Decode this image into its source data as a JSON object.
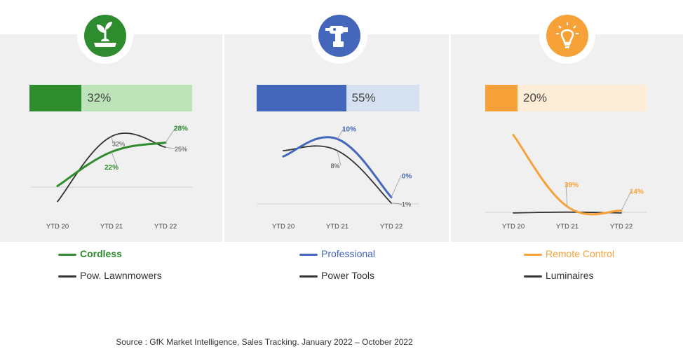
{
  "source_text": "Source : GfK Market Intelligence, Sales Tracking. January 2022 – October 2022",
  "chart_data": [
    {
      "type": "line",
      "icon": "sprouting-plant-icon",
      "icon_color": "#2e8b2e",
      "share_value": 32,
      "share_label": "32%",
      "categories": [
        "YTD 20",
        "YTD 21",
        "YTD 22"
      ],
      "ylim": [
        -12,
        35
      ],
      "series": [
        {
          "name": "Cordless",
          "color": "#2e8b2e",
          "values": [
            0,
            22,
            28
          ],
          "labels": [
            "",
            "22%",
            "28%"
          ]
        },
        {
          "name": "Pow. Lawnmowers",
          "color": "#333333",
          "values": [
            -10,
            32,
            25
          ],
          "labels": [
            "",
            "32%",
            "25%"
          ]
        }
      ]
    },
    {
      "type": "line",
      "icon": "power-drill-icon",
      "icon_color": "#4466bb",
      "share_value": 55,
      "share_label": "55%",
      "categories": [
        "YTD 20",
        "YTD 21",
        "YTD 22"
      ],
      "ylim": [
        -2,
        11
      ],
      "series": [
        {
          "name": "Professional",
          "color": "#4466bb",
          "values": [
            7,
            10,
            0
          ],
          "labels": [
            "",
            "10%",
            "0%"
          ]
        },
        {
          "name": "Power Tools",
          "color": "#333333",
          "values": [
            8,
            8,
            -1
          ],
          "labels": [
            "",
            "8%",
            "-1%"
          ]
        }
      ]
    },
    {
      "type": "line",
      "icon": "led-bulb-icon",
      "icon_color": "#f7a239",
      "share_value": 20,
      "share_label": "20%",
      "categories": [
        "YTD 20",
        "YTD 21",
        "YTD 22"
      ],
      "ylim": [
        -5,
        500
      ],
      "series": [
        {
          "name": "Remote Control",
          "color": "#f7a239",
          "values": [
            480,
            39,
            14
          ],
          "labels": [
            "",
            "39%",
            "14%"
          ]
        },
        {
          "name": "Luminaires",
          "color": "#333333",
          "values": [
            0,
            5,
            0
          ],
          "labels": [
            "",
            "",
            ""
          ]
        }
      ]
    }
  ]
}
